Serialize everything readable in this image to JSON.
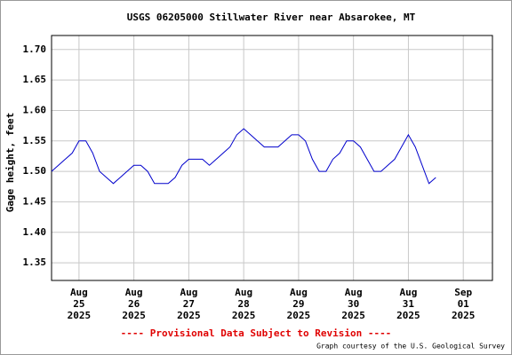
{
  "chart_data": {
    "type": "line",
    "title": "USGS 06205000 Stillwater River near Absarokee, MT",
    "y_label": "Gage height, feet",
    "footer": "---- Provisional Data Subject to Revision ----",
    "credit": "Graph courtesy of the U.S. Geological Survey",
    "x": [
      "2025-08-24T12:00",
      "2025-08-24T15:00",
      "2025-08-24T18:00",
      "2025-08-24T21:00",
      "2025-08-25T00:00",
      "2025-08-25T03:00",
      "2025-08-25T06:00",
      "2025-08-25T09:00",
      "2025-08-25T12:00",
      "2025-08-25T15:00",
      "2025-08-25T18:00",
      "2025-08-25T21:00",
      "2025-08-26T00:00",
      "2025-08-26T03:00",
      "2025-08-26T06:00",
      "2025-08-26T09:00",
      "2025-08-26T12:00",
      "2025-08-26T15:00",
      "2025-08-26T18:00",
      "2025-08-26T21:00",
      "2025-08-27T00:00",
      "2025-08-27T03:00",
      "2025-08-27T06:00",
      "2025-08-27T09:00",
      "2025-08-27T12:00",
      "2025-08-27T15:00",
      "2025-08-27T18:00",
      "2025-08-27T21:00",
      "2025-08-28T00:00",
      "2025-08-28T03:00",
      "2025-08-28T06:00",
      "2025-08-28T09:00",
      "2025-08-28T12:00",
      "2025-08-28T15:00",
      "2025-08-28T18:00",
      "2025-08-28T21:00",
      "2025-08-29T00:00",
      "2025-08-29T03:00",
      "2025-08-29T06:00",
      "2025-08-29T09:00",
      "2025-08-29T12:00",
      "2025-08-29T15:00",
      "2025-08-29T18:00",
      "2025-08-29T21:00",
      "2025-08-30T00:00",
      "2025-08-30T03:00",
      "2025-08-30T06:00",
      "2025-08-30T09:00",
      "2025-08-30T12:00",
      "2025-08-30T15:00",
      "2025-08-30T18:00",
      "2025-08-30T21:00",
      "2025-08-31T00:00",
      "2025-08-31T03:00",
      "2025-08-31T06:00",
      "2025-08-31T09:00",
      "2025-08-31T12:00"
    ],
    "series": [
      {
        "color": "#0000cc",
        "values": [
          1.5,
          1.51,
          1.52,
          1.53,
          1.55,
          1.55,
          1.53,
          1.5,
          1.49,
          1.48,
          1.49,
          1.5,
          1.51,
          1.51,
          1.5,
          1.48,
          1.48,
          1.48,
          1.49,
          1.51,
          1.52,
          1.52,
          1.52,
          1.51,
          1.52,
          1.53,
          1.54,
          1.56,
          1.57,
          1.56,
          1.55,
          1.54,
          1.54,
          1.54,
          1.55,
          1.56,
          1.56,
          1.55,
          1.52,
          1.5,
          1.5,
          1.52,
          1.53,
          1.55,
          1.55,
          1.54,
          1.52,
          1.5,
          1.5,
          1.51,
          1.52,
          1.54,
          1.56,
          1.54,
          1.51,
          1.48,
          1.49
        ]
      }
    ],
    "xlim": [
      "2025-08-24T12:00",
      "2025-09-01T12:45"
    ],
    "xticks": [
      {
        "value": "2025-08-25T00:00",
        "label": [
          "Aug",
          "25",
          "2025"
        ]
      },
      {
        "value": "2025-08-26T00:00",
        "label": [
          "Aug",
          "26",
          "2025"
        ]
      },
      {
        "value": "2025-08-27T00:00",
        "label": [
          "Aug",
          "27",
          "2025"
        ]
      },
      {
        "value": "2025-08-28T00:00",
        "label": [
          "Aug",
          "28",
          "2025"
        ]
      },
      {
        "value": "2025-08-29T00:00",
        "label": [
          "Aug",
          "29",
          "2025"
        ]
      },
      {
        "value": "2025-08-30T00:00",
        "label": [
          "Aug",
          "30",
          "2025"
        ]
      },
      {
        "value": "2025-08-31T00:00",
        "label": [
          "Aug",
          "31",
          "2025"
        ]
      },
      {
        "value": "2025-09-01T00:00",
        "label": [
          "Sep",
          "01",
          "2025"
        ]
      }
    ],
    "ylim": [
      1.321,
      1.723
    ],
    "yticks": [
      1.35,
      {
        "value": 1.4,
        "label": "1.40"
      },
      1.45,
      {
        "value": 1.5,
        "label": "1.50"
      },
      1.55,
      {
        "value": 1.6,
        "label": "1.60"
      },
      1.65,
      {
        "value": 1.7,
        "label": "1.70"
      }
    ],
    "grid": true
  }
}
